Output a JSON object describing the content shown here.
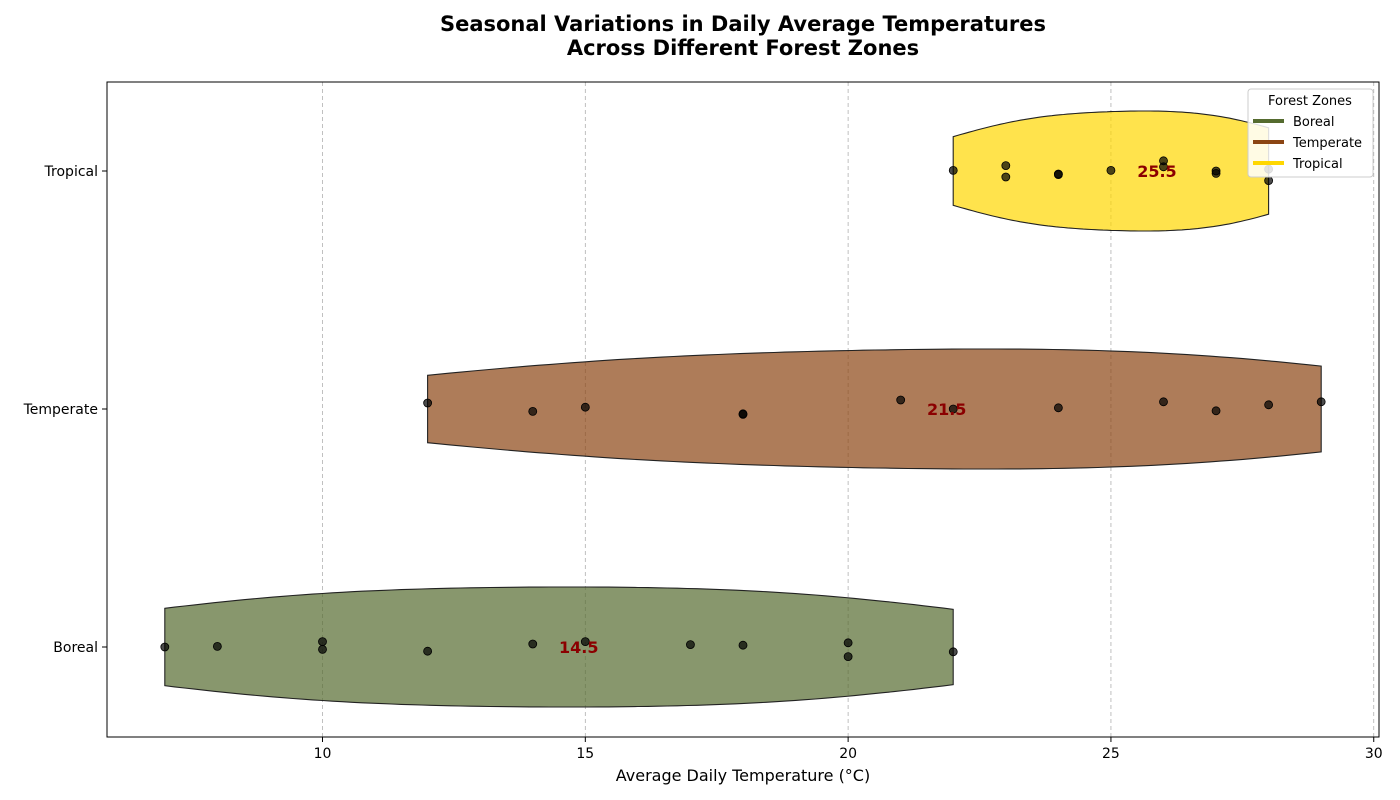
{
  "chart_data": {
    "type": "violin",
    "orientation": "horizontal",
    "title_lines": [
      "Seasonal Variations in Daily Average Temperatures",
      "Across Different Forest Zones"
    ],
    "xlabel": "Average Daily Temperature (°C)",
    "ylabel": "",
    "xlim": [
      5.9,
      30.1
    ],
    "xticks": [
      10,
      15,
      20,
      25,
      30
    ],
    "grid": "vertical dashed",
    "legend": {
      "title": "Forest Zones",
      "placement": "top-right"
    },
    "categories": [
      "Boreal",
      "Temperate",
      "Tropical"
    ],
    "series": [
      {
        "name": "Boreal",
        "color": "#556b2f",
        "median": 14.5,
        "median_label": "14.5",
        "range": [
          7,
          22
        ],
        "points": [
          {
            "x": 7,
            "y": 0.0
          },
          {
            "x": 8,
            "y": 0.01
          },
          {
            "x": 10,
            "y": 0.09
          },
          {
            "x": 10,
            "y": -0.04
          },
          {
            "x": 12,
            "y": -0.07
          },
          {
            "x": 14,
            "y": 0.05
          },
          {
            "x": 15,
            "y": 0.09
          },
          {
            "x": 17,
            "y": 0.04
          },
          {
            "x": 18,
            "y": 0.03
          },
          {
            "x": 20,
            "y": 0.07
          },
          {
            "x": 20,
            "y": -0.16
          },
          {
            "x": 22,
            "y": -0.08
          }
        ]
      },
      {
        "name": "Temperate",
        "color": "#8b4513",
        "median": 21.5,
        "median_label": "21.5",
        "range": [
          12,
          29
        ],
        "points": [
          {
            "x": 12,
            "y": 0.1
          },
          {
            "x": 14,
            "y": -0.04
          },
          {
            "x": 15,
            "y": 0.03
          },
          {
            "x": 18,
            "y": -0.08
          },
          {
            "x": 18,
            "y": -0.09
          },
          {
            "x": 21,
            "y": 0.15
          },
          {
            "x": 22,
            "y": 0.0
          },
          {
            "x": 24,
            "y": 0.02
          },
          {
            "x": 26,
            "y": 0.12
          },
          {
            "x": 27,
            "y": -0.03
          },
          {
            "x": 28,
            "y": 0.07
          },
          {
            "x": 29,
            "y": 0.12
          }
        ]
      },
      {
        "name": "Tropical",
        "color": "#ffd700",
        "median": 25.5,
        "median_label": "25.5",
        "range": [
          22,
          28
        ],
        "points": [
          {
            "x": 22,
            "y": 0.01
          },
          {
            "x": 23,
            "y": 0.09
          },
          {
            "x": 23,
            "y": -0.1
          },
          {
            "x": 24,
            "y": -0.05
          },
          {
            "x": 24,
            "y": -0.06
          },
          {
            "x": 25,
            "y": 0.01
          },
          {
            "x": 26,
            "y": 0.17
          },
          {
            "x": 26,
            "y": 0.07
          },
          {
            "x": 27,
            "y": 0.0
          },
          {
            "x": 27,
            "y": -0.04
          },
          {
            "x": 28,
            "y": -0.16
          },
          {
            "x": 28,
            "y": 0.03
          }
        ]
      }
    ]
  }
}
